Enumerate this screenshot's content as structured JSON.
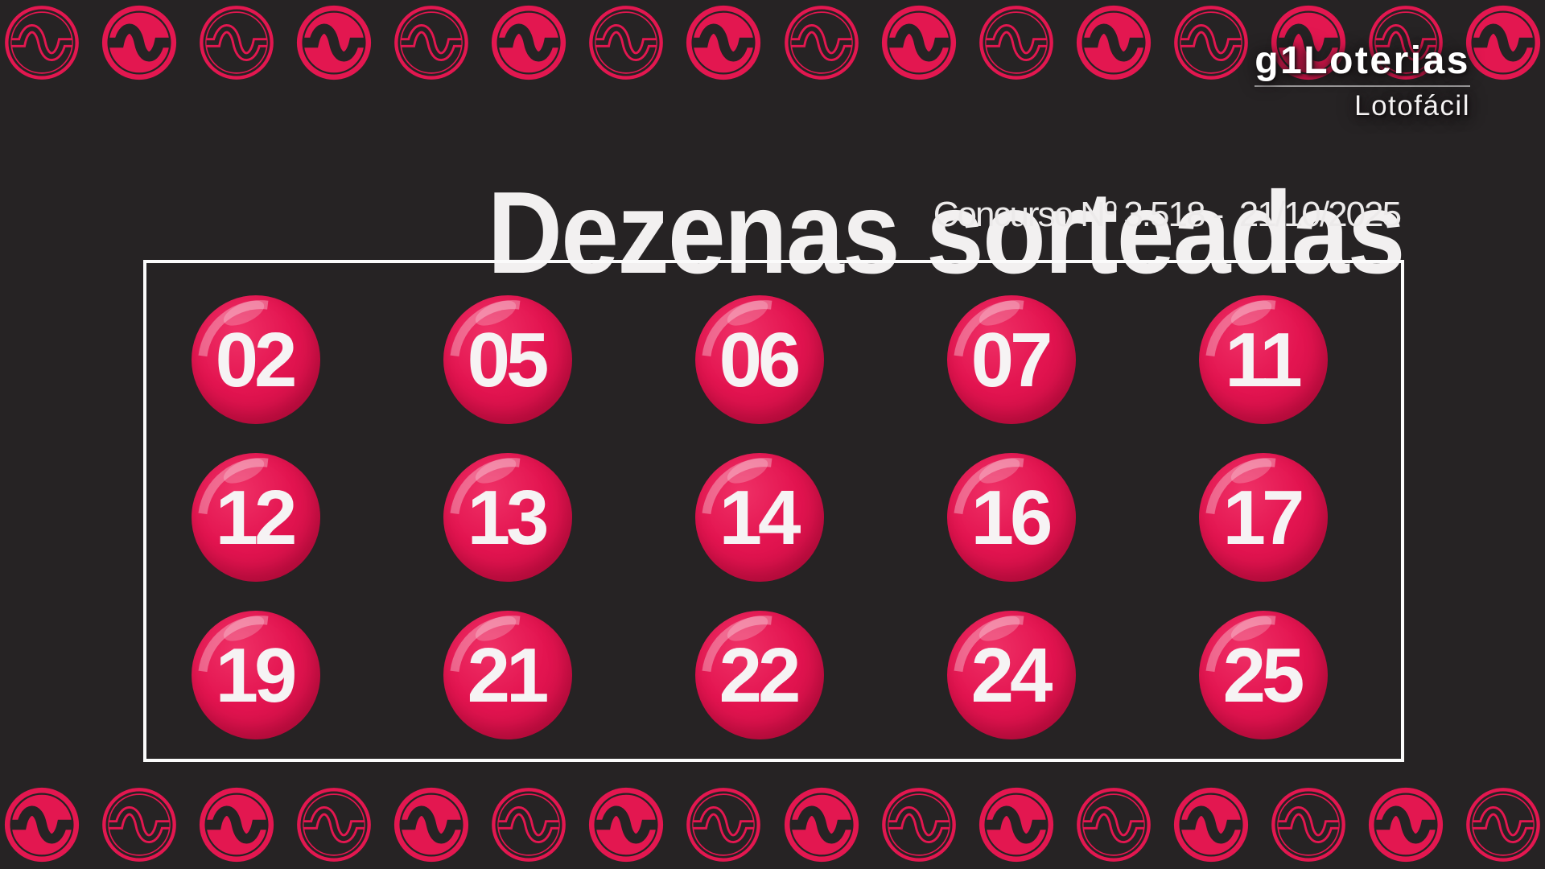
{
  "colors": {
    "background": "#262324",
    "accent_pink": "#e31750",
    "ball_base": "#e31450",
    "ball_dark": "#c90d44",
    "ball_light": "#ef3066",
    "text_white": "#f2f0f0",
    "box_border": "#fbfbfb"
  },
  "header": {
    "logo_brand": "g1Loterias",
    "logo_product": "Lotofácil"
  },
  "title": "Dezenas sorteadas",
  "subtitle": "Concurso Nº 3.518 -  21/10/2025",
  "board": {
    "columns": 5,
    "rows": 3,
    "numbers": [
      "02",
      "05",
      "06",
      "07",
      "11",
      "12",
      "13",
      "14",
      "16",
      "17",
      "19",
      "21",
      "22",
      "24",
      "25"
    ]
  },
  "decor": {
    "icon": "money-squiggle-coin-icon",
    "icons_per_row": 16,
    "top_row_first": "outline",
    "bottom_row_first": "filled"
  }
}
